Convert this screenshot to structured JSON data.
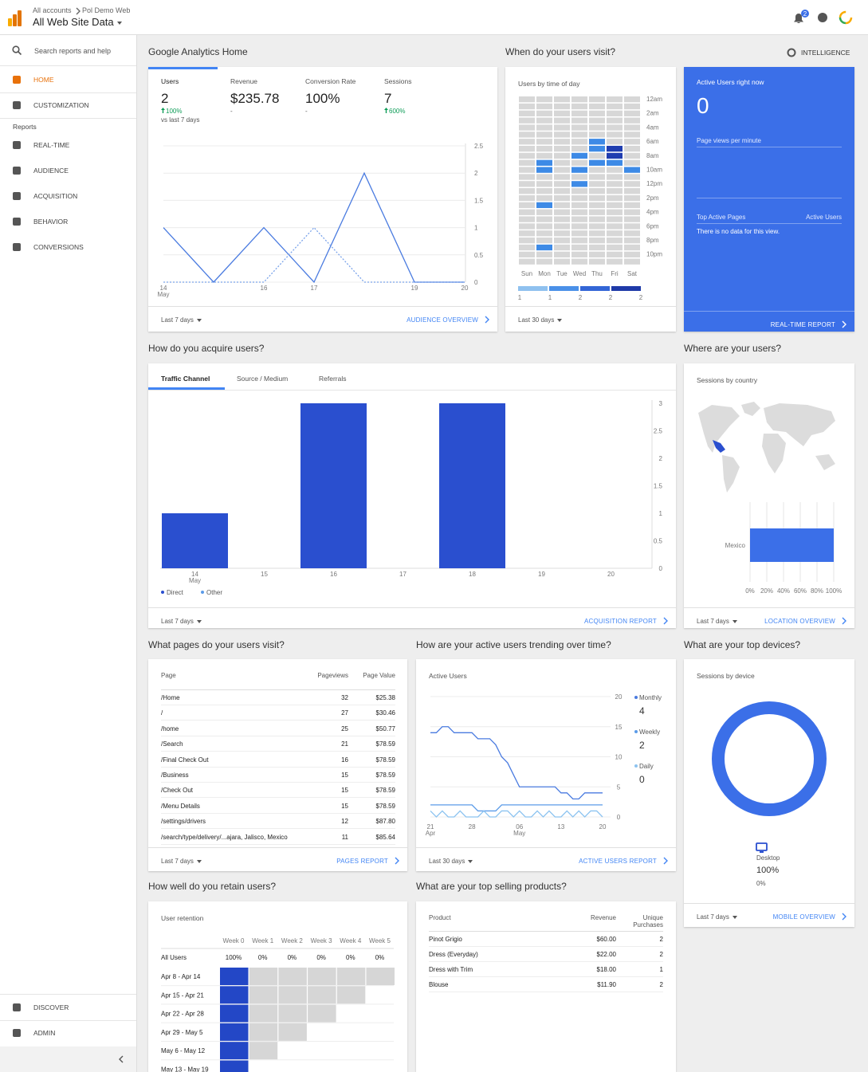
{
  "header": {
    "breadcrumb": [
      "All accounts",
      "Pol Demo Web"
    ],
    "property": "All Web Site Data",
    "notifications": 2
  },
  "sidebar": {
    "search": "Search reports and help",
    "top": [
      "HOME",
      "CUSTOMIZATION"
    ],
    "reports_label": "Reports",
    "reports": [
      "REAL-TIME",
      "AUDIENCE",
      "ACQUISITION",
      "BEHAVIOR",
      "CONVERSIONS"
    ],
    "bottom": [
      "DISCOVER",
      "ADMIN"
    ]
  },
  "headings": {
    "home": "Google Analytics Home",
    "visit": "When do your users visit?",
    "intelligence": "INTELLIGENCE",
    "acquire": "How do you acquire users?",
    "where": "Where are your users?",
    "pages": "What pages do your users visit?",
    "trend": "How are your active users trending over time?",
    "devices": "What are your top devices?",
    "retain": "How well do you retain users?",
    "products": "What are your top selling products?"
  },
  "home": {
    "metrics": [
      {
        "label": "Users",
        "value": 2,
        "change": "100%",
        "note": "vs last 7 days"
      },
      {
        "label": "Revenue",
        "value": "$235.78",
        "change": "-"
      },
      {
        "label": "Conversion Rate",
        "value": "100%",
        "change": "-"
      },
      {
        "label": "Sessions",
        "value": 7,
        "change": "600%"
      }
    ],
    "range": "Last 7 days",
    "link": "AUDIENCE OVERVIEW"
  },
  "visit": {
    "range": "Last 30 days"
  },
  "realtime": {
    "title": "Active Users right now",
    "value": 0,
    "subtitle": "Page views per minute",
    "pages_header": "Top Active Pages",
    "users_header": "Active Users",
    "empty": "There is no data for this view.",
    "link": "REAL-TIME REPORT"
  },
  "acquire": {
    "tabs": [
      "Traffic Channel",
      "Source / Medium",
      "Referrals"
    ],
    "range": "Last 7 days",
    "link": "ACQUISITION REPORT"
  },
  "where": {
    "range": "Last 7 days",
    "link": "LOCATION OVERVIEW"
  },
  "pages": {
    "columns": [
      "Page",
      "Pageviews",
      "Page Value"
    ],
    "rows": [
      [
        "/Home",
        32,
        "$25.38"
      ],
      [
        "/",
        27,
        "$30.46"
      ],
      [
        "/home",
        25,
        "$50.77"
      ],
      [
        "/Search",
        21,
        "$78.59"
      ],
      [
        "/Final Check Out",
        16,
        "$78.59"
      ],
      [
        "/Business",
        15,
        "$78.59"
      ],
      [
        "/Check Out",
        15,
        "$78.59"
      ],
      [
        "/Menu Details",
        15,
        "$78.59"
      ],
      [
        "/settings/drivers",
        12,
        "$87.80"
      ],
      [
        "/search/type/delivery/...ajara, Jalisco, Mexico",
        11,
        "$85.64"
      ]
    ],
    "range": "Last 7 days",
    "link": "PAGES REPORT"
  },
  "trend": {
    "range": "Last 30 days",
    "link": "ACTIVE USERS REPORT"
  },
  "devices": {
    "range": "Last 7 days",
    "link": "MOBILE OVERVIEW"
  },
  "products": {
    "columns": [
      "Product",
      "Revenue",
      "Unique Purchases"
    ],
    "rows": [
      [
        "Pinot Grigio",
        "$60.00",
        2
      ],
      [
        "Dress (Everyday)",
        "$22.00",
        2
      ],
      [
        "Dress with Trim",
        "$18.00",
        1
      ],
      [
        "Blouse",
        "$11.90",
        2
      ]
    ]
  },
  "chart_data": [
    {
      "type": "line",
      "categories": [
        "14",
        null,
        "16",
        "17",
        null,
        "19",
        "20"
      ],
      "x_sublabels": [
        "May",
        null,
        null,
        null,
        null,
        null,
        null
      ],
      "series": [
        {
          "color": "#4a7be0",
          "values": [
            1,
            0,
            1,
            0,
            2,
            0,
            0
          ]
        },
        {
          "color": "#7aa3ea",
          "dash": true,
          "values": [
            0,
            0,
            0,
            1,
            0,
            0,
            0
          ]
        }
      ],
      "ylim": [
        0,
        2.5
      ],
      "yticks": [
        0,
        0.5,
        1,
        1.5,
        2,
        2.5
      ],
      "grid": true
    },
    {
      "type": "heatmap",
      "title": "Users by time of day",
      "days": [
        "Sun",
        "Mon",
        "Tue",
        "Wed",
        "Thu",
        "Fri",
        "Sat"
      ],
      "hours": [
        "12am",
        null,
        "2am",
        null,
        "4am",
        null,
        "6am",
        null,
        "8am",
        null,
        "10am",
        null,
        "12pm",
        null,
        "2pm",
        null,
        "4pm",
        null,
        "6pm",
        null,
        "8pm",
        null,
        "10pm",
        null
      ],
      "values": [
        [
          0,
          0,
          0,
          0,
          0,
          0,
          0
        ],
        [
          0,
          0,
          0,
          0,
          0,
          0,
          0
        ],
        [
          0,
          0,
          0,
          0,
          0,
          0,
          0
        ],
        [
          0,
          0,
          0,
          0,
          0,
          0,
          0
        ],
        [
          0,
          0,
          0,
          0,
          0,
          0,
          0
        ],
        [
          0,
          0,
          0,
          0,
          0,
          0,
          0
        ],
        [
          0,
          0,
          0,
          0,
          1,
          0,
          0
        ],
        [
          0,
          0,
          0,
          0,
          1,
          2,
          0
        ],
        [
          0,
          0,
          0,
          1,
          0,
          2,
          0
        ],
        [
          0,
          1,
          0,
          0,
          1,
          1,
          0
        ],
        [
          0,
          1,
          0,
          1,
          0,
          0,
          1
        ],
        [
          0,
          0,
          0,
          0,
          0,
          0,
          0
        ],
        [
          0,
          0,
          0,
          1,
          0,
          0,
          0
        ],
        [
          0,
          0,
          0,
          0,
          0,
          0,
          0
        ],
        [
          0,
          0,
          0,
          0,
          0,
          0,
          0
        ],
        [
          0,
          1,
          0,
          0,
          0,
          0,
          0
        ],
        [
          0,
          0,
          0,
          0,
          0,
          0,
          0
        ],
        [
          0,
          0,
          0,
          0,
          0,
          0,
          0
        ],
        [
          0,
          0,
          0,
          0,
          0,
          0,
          0
        ],
        [
          0,
          0,
          0,
          0,
          0,
          0,
          0
        ],
        [
          0,
          0,
          0,
          0,
          0,
          0,
          0
        ],
        [
          0,
          1,
          0,
          0,
          0,
          0,
          0
        ],
        [
          0,
          0,
          0,
          0,
          0,
          0,
          0
        ],
        [
          0,
          0,
          0,
          0,
          0,
          0,
          0
        ]
      ],
      "scale_colors": [
        "#d7d7d7",
        "#3d8ae6",
        "#1f3db0"
      ],
      "legend_colors": [
        "#8fc1ef",
        "#4a90e8",
        "#3366d6",
        "#1f3aa8"
      ],
      "legend_values": [
        1,
        1,
        2,
        2,
        2
      ]
    },
    {
      "type": "bar",
      "categories": [
        "14",
        "15",
        "16",
        "17",
        "18",
        "19",
        "20"
      ],
      "x_sublabels": [
        "May",
        null,
        null,
        null,
        null,
        null,
        null
      ],
      "series": [
        {
          "name": "Direct",
          "color": "#2a4fcf",
          "values": [
            1,
            0,
            3,
            0,
            3,
            0,
            0
          ]
        },
        {
          "name": "Other",
          "color": "#5b9be8",
          "values": [
            0,
            0,
            0,
            0,
            0,
            0,
            0
          ]
        }
      ],
      "ylim": [
        0,
        3
      ],
      "yticks": [
        0,
        0.5,
        1,
        1.5,
        2,
        2.5,
        3
      ],
      "grid": false
    },
    {
      "type": "hbar",
      "title": "Sessions by country",
      "categories": [
        "Mexico"
      ],
      "values": [
        100
      ],
      "color": "#3b6fe8",
      "xlim": [
        0,
        100
      ],
      "xticks": [
        {
          "value": 0,
          "label": "0%"
        },
        {
          "value": 20,
          "label": "20%"
        },
        {
          "value": 40,
          "label": "40%"
        },
        {
          "value": 60,
          "label": "60%"
        },
        {
          "value": 80,
          "label": "80%"
        },
        {
          "value": 100,
          "label": "100%"
        }
      ],
      "grid": true
    },
    {
      "type": "line",
      "title": "Active Users",
      "categories": [
        "21",
        null,
        null,
        null,
        null,
        null,
        null,
        "28",
        null,
        null,
        null,
        null,
        null,
        null,
        null,
        "06",
        null,
        null,
        null,
        null,
        null,
        null,
        "13",
        null,
        null,
        null,
        null,
        null,
        null,
        "20"
      ],
      "x_sublabels": [
        "Apr",
        null,
        null,
        null,
        null,
        null,
        null,
        null,
        null,
        null,
        null,
        null,
        null,
        null,
        null,
        "May",
        null,
        null,
        null,
        null,
        null,
        null,
        null,
        null,
        null,
        null,
        null,
        null,
        null,
        null
      ],
      "series": [
        {
          "name": "Monthly",
          "latest": 4,
          "color": "#4a7be0",
          "values": [
            14,
            14,
            15,
            15,
            14,
            14,
            14,
            14,
            13,
            13,
            13,
            12,
            10,
            9,
            7,
            5,
            5,
            5,
            5,
            5,
            5,
            5,
            4,
            4,
            3,
            3,
            4,
            4,
            4,
            4
          ]
        },
        {
          "name": "Weekly",
          "latest": 2,
          "color": "#5b9be8",
          "values": [
            2,
            2,
            2,
            2,
            2,
            2,
            2,
            2,
            1,
            1,
            1,
            1,
            2,
            2,
            2,
            2,
            2,
            2,
            2,
            2,
            2,
            2,
            2,
            2,
            2,
            2,
            2,
            2,
            2,
            2
          ]
        },
        {
          "name": "Daily",
          "latest": 0,
          "color": "#8cc3f0",
          "values": [
            1,
            0,
            1,
            0,
            0,
            1,
            0,
            0,
            0,
            1,
            0,
            0,
            1,
            1,
            0,
            1,
            0,
            0,
            1,
            0,
            1,
            0,
            0,
            1,
            0,
            1,
            0,
            1,
            1,
            0
          ]
        }
      ],
      "ylim": [
        0,
        20
      ],
      "yticks": [
        0,
        5,
        10,
        15,
        20
      ],
      "grid": true
    },
    {
      "type": "donut",
      "title": "Sessions by device",
      "categories": [
        "Desktop"
      ],
      "values": [
        100
      ],
      "value_labels": [
        "100%"
      ],
      "changes": [
        "0%"
      ],
      "color": "#3b6fe8"
    },
    {
      "type": "retention",
      "title": "User retention",
      "columns": [
        "Week 0",
        "Week 1",
        "Week 2",
        "Week 3",
        "Week 4",
        "Week 5"
      ],
      "total_label": "All Users",
      "total_labels": [
        "100%",
        "0%",
        "0%",
        "0%",
        "0%",
        "0%"
      ],
      "rows": [
        "Apr 8 - Apr 14",
        "Apr 15 - Apr 21",
        "Apr 22 - Apr 28",
        "Apr 29 - May 5",
        "May 6 - May 12",
        "May 13 - May 19"
      ],
      "values": [
        [
          100,
          0,
          0,
          0,
          0,
          0
        ],
        [
          100,
          0,
          0,
          0,
          0
        ],
        [
          100,
          0,
          0,
          0
        ],
        [
          100,
          0,
          0
        ],
        [
          100,
          0
        ],
        [
          100
        ]
      ],
      "scale": [
        0,
        100
      ],
      "colors": [
        "#d6d6d6",
        "#2347c6"
      ]
    }
  ]
}
